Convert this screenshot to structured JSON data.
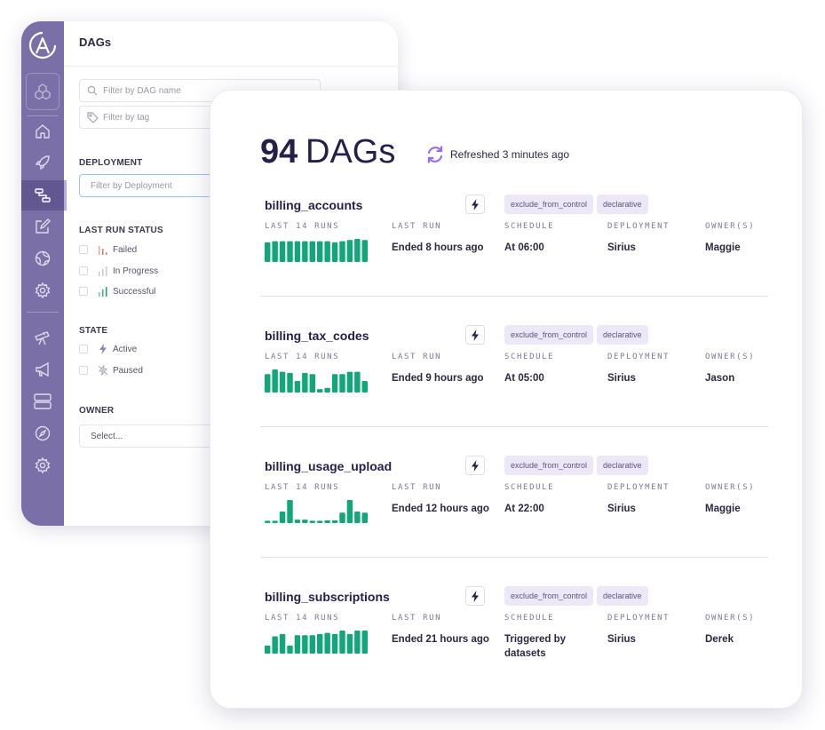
{
  "sidebar": {
    "logo": "A",
    "icons": [
      "cubes-icon",
      "home-icon",
      "rocket-icon",
      "dag-icon",
      "edit-icon",
      "globe-icon",
      "gear-icon",
      "telescope-icon",
      "megaphone-icon",
      "rows-icon",
      "compass-icon",
      "settings-icon"
    ]
  },
  "filters": {
    "title": "DAGs",
    "dag_name_placeholder": "Filter by DAG name",
    "tag_placeholder": "Filter by tag",
    "deployment_label": "DEPLOYMENT",
    "deployment_placeholder": "Filter by Deployment",
    "last_run_status_label": "LAST RUN STATUS",
    "status_options": [
      "Failed",
      "In Progress",
      "Successful"
    ],
    "state_label": "STATE",
    "state_options": [
      "Active",
      "Paused"
    ],
    "owner_label": "OWNER",
    "owner_placeholder": "Select..."
  },
  "main": {
    "count": "94",
    "count_label": "DAGs",
    "refreshed": "Refreshed 3 minutes ago"
  },
  "columns": {
    "runs": "LAST 14 RUNS",
    "last_run": "LAST RUN",
    "schedule": "SCHEDULE",
    "deployment": "DEPLOYMENT",
    "owners": "OWNER(S)"
  },
  "dags": [
    {
      "name": "billing_accounts",
      "tags": [
        "exclude_from_control",
        "declarative"
      ],
      "last_run": "Ended 8 hours ago",
      "schedule": "At 06:00",
      "deployment": "Sirius",
      "owner": "Maggie",
      "runs": [
        0.85,
        0.9,
        0.9,
        0.9,
        0.9,
        0.9,
        0.9,
        0.9,
        0.9,
        0.85,
        0.9,
        0.95,
        1.0,
        0.95
      ]
    },
    {
      "name": "billing_tax_codes",
      "tags": [
        "exclude_from_control",
        "declarative"
      ],
      "last_run": "Ended 9 hours ago",
      "schedule": "At 05:00",
      "deployment": "Sirius",
      "owner": "Jason",
      "runs": [
        0.8,
        1.0,
        0.9,
        0.85,
        0.5,
        0.85,
        0.8,
        0.15,
        0.2,
        0.8,
        0.8,
        0.9,
        0.9,
        0.5
      ]
    },
    {
      "name": "billing_usage_upload",
      "tags": [
        "exclude_from_control",
        "declarative"
      ],
      "last_run": "Ended 12 hours ago",
      "schedule": "At 22:00",
      "deployment": "Sirius",
      "owner": "Maggie",
      "runs": [
        0.1,
        0.1,
        0.5,
        1.0,
        0.15,
        0.15,
        0.1,
        0.1,
        0.12,
        0.12,
        0.45,
        1.0,
        0.5,
        0.45
      ]
    },
    {
      "name": "billing_subscriptions",
      "tags": [
        "exclude_from_control",
        "declarative"
      ],
      "last_run": "Ended 21 hours ago",
      "schedule": "Triggered by datasets",
      "deployment": "Sirius",
      "owner": "Derek",
      "runs": [
        0.35,
        0.75,
        0.85,
        0.35,
        0.8,
        0.8,
        0.8,
        0.85,
        0.9,
        0.85,
        1.0,
        0.85,
        1.0,
        1.0
      ]
    }
  ],
  "colors": {
    "sidebar": "#7b6fa8",
    "accent_green": "#12a67a",
    "tag_bg": "#ece8f7",
    "refresh_icon": "#9a6ee8"
  }
}
